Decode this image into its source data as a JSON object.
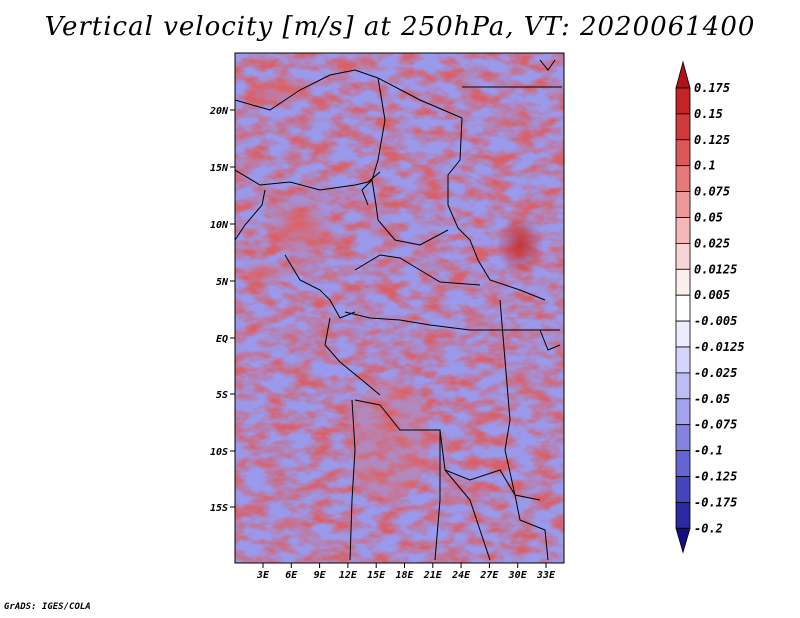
{
  "title": "Vertical velocity [m/s] at 250hPa, VT: 2020061400",
  "credit": "GrADS: IGES/COLA",
  "map": {
    "lat_labels": [
      "20N",
      "15N",
      "10N",
      "5N",
      "EQ",
      "5S",
      "10S",
      "15S"
    ],
    "lon_labels": [
      "3E",
      "6E",
      "9E",
      "12E",
      "15E",
      "18E",
      "21E",
      "24E",
      "27E",
      "30E",
      "33E"
    ]
  },
  "colorbar": {
    "levels": [
      "0.175",
      "0.15",
      "0.125",
      "0.1",
      "0.075",
      "0.05",
      "0.025",
      "0.0125",
      "0.005",
      "-0.005",
      "-0.0125",
      "-0.025",
      "-0.05",
      "-0.075",
      "-0.1",
      "-0.125",
      "-0.175",
      "-0.2"
    ],
    "colors": [
      "#b01418",
      "#c22428",
      "#d03a3a",
      "#dc5858",
      "#e57878",
      "#ed9898",
      "#f4b8b8",
      "#f9d4d4",
      "#fdeeee",
      "#ffffff",
      "#ececff",
      "#d4d4fc",
      "#bcbcf6",
      "#a2a2ee",
      "#8484e0",
      "#6464d2",
      "#4444bc",
      "#2a2aa2",
      "#140f80"
    ]
  }
}
